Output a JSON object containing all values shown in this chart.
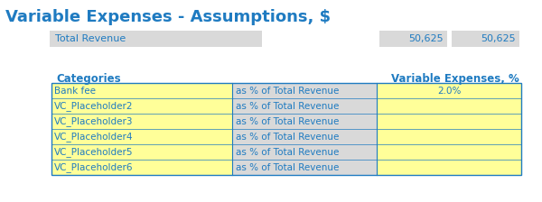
{
  "title": "Variable Expenses - Assumptions, $",
  "title_color": "#1F7BC1",
  "title_fontsize": 13,
  "background_color": "#FFFFFF",
  "total_revenue_label": "Total Revenue",
  "total_revenue_values": [
    "50,625",
    "50,625"
  ],
  "total_revenue_bg": "#D9D9D9",
  "header_col1": "Categories",
  "header_col2": "Variable Expenses, %",
  "header_color": "#1F7BC1",
  "header_fontsize": 8.5,
  "rows": [
    {
      "col1": "Bank fee",
      "col2": "as % of Total Revenue",
      "col3": "2.0%"
    },
    {
      "col1": "VC_Placeholder2",
      "col2": "as % of Total Revenue",
      "col3": ""
    },
    {
      "col1": "VC_Placeholder3",
      "col2": "as % of Total Revenue",
      "col3": ""
    },
    {
      "col1": "VC_Placeholder4",
      "col2": "as % of Total Revenue",
      "col3": ""
    },
    {
      "col1": "VC_Placeholder5",
      "col2": "as % of Total Revenue",
      "col3": ""
    },
    {
      "col1": "VC_Placeholder6",
      "col2": "as % of Total Revenue",
      "col3": ""
    }
  ],
  "row_col1_bg": "#FFFF99",
  "row_col2_bg": "#D9D9D9",
  "row_col3_bg": "#FFFF99",
  "row_text_color": "#1F7BC1",
  "row_fontsize": 7.5,
  "border_color": "#1F7BC1",
  "fig_width": 6.0,
  "fig_height": 2.24,
  "dpi": 100
}
